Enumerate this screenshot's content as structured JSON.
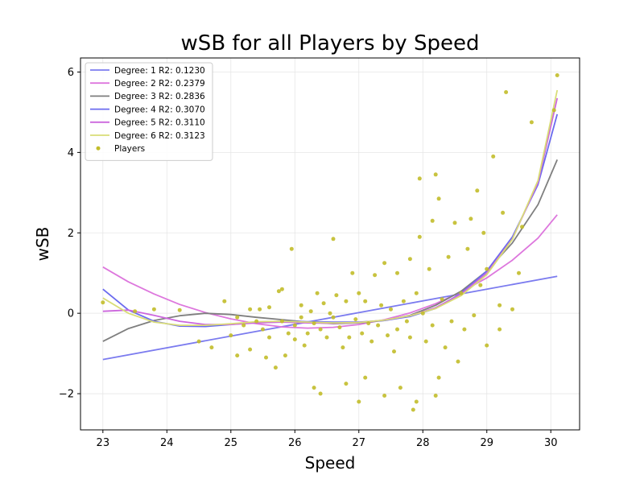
{
  "chart_data": {
    "type": "scatter",
    "title": "wSB for all Players by Speed",
    "xlabel": "Speed",
    "ylabel": "wSB",
    "xlim": [
      22.65,
      30.45
    ],
    "ylim": [
      -2.9,
      6.35
    ],
    "xticks": [
      23,
      24,
      25,
      26,
      27,
      28,
      29,
      30
    ],
    "yticks": [
      -2,
      0,
      2,
      4,
      6
    ],
    "ytick_labels": [
      "−2",
      "0",
      "2",
      "4",
      "6"
    ],
    "grid": true,
    "legend_position": "top-left",
    "series": [
      {
        "name": "Degree: 1 R2: 0.1230",
        "kind": "line",
        "color": "#7b7bef",
        "x": [
          23.0,
          30.1
        ],
        "y": [
          -1.15,
          0.92
        ]
      },
      {
        "name": "Degree: 2 R2: 0.2379",
        "kind": "line",
        "color": "#dd77dd",
        "x": [
          23.0,
          23.4,
          23.8,
          24.2,
          24.6,
          25.0,
          25.4,
          25.8,
          26.2,
          26.6,
          27.0,
          27.4,
          27.8,
          28.2,
          28.6,
          29.0,
          29.4,
          29.8,
          30.1
        ],
        "y": [
          1.15,
          0.78,
          0.48,
          0.22,
          0.02,
          -0.14,
          -0.26,
          -0.34,
          -0.37,
          -0.35,
          -0.28,
          -0.16,
          0.01,
          0.24,
          0.53,
          0.88,
          1.32,
          1.87,
          2.45
        ]
      },
      {
        "name": "Degree: 3 R2: 0.2836",
        "kind": "line",
        "color": "#7f7f7f",
        "x": [
          23.0,
          23.4,
          23.8,
          24.2,
          24.6,
          25.0,
          25.4,
          25.8,
          26.2,
          26.6,
          27.0,
          27.4,
          27.8,
          28.2,
          28.6,
          29.0,
          29.4,
          29.8,
          30.1
        ],
        "y": [
          -0.7,
          -0.38,
          -0.18,
          -0.06,
          0.0,
          -0.03,
          -0.1,
          -0.16,
          -0.22,
          -0.26,
          -0.24,
          -0.18,
          -0.05,
          0.2,
          0.55,
          1.05,
          1.75,
          2.7,
          3.82
        ]
      },
      {
        "name": "Degree: 4 R2: 0.3070",
        "kind": "line",
        "color": "#6b6bef",
        "x": [
          23.0,
          23.4,
          23.8,
          24.2,
          24.6,
          25.0,
          25.4,
          25.8,
          26.2,
          26.6,
          27.0,
          27.4,
          27.8,
          28.2,
          28.6,
          29.0,
          29.4,
          29.8,
          30.1
        ],
        "y": [
          0.6,
          0.08,
          -0.2,
          -0.32,
          -0.33,
          -0.28,
          -0.22,
          -0.2,
          -0.21,
          -0.22,
          -0.22,
          -0.18,
          -0.08,
          0.12,
          0.5,
          1.05,
          1.9,
          3.2,
          4.95
        ]
      },
      {
        "name": "Degree: 5 R2: 0.3110",
        "kind": "line",
        "color": "#cc66dd",
        "x": [
          23.0,
          23.4,
          23.8,
          24.2,
          24.6,
          25.0,
          25.4,
          25.8,
          26.2,
          26.6,
          27.0,
          27.4,
          27.8,
          28.2,
          28.6,
          29.0,
          29.4,
          29.8,
          30.1
        ],
        "y": [
          0.05,
          0.08,
          -0.05,
          -0.2,
          -0.28,
          -0.28,
          -0.24,
          -0.22,
          -0.24,
          -0.25,
          -0.23,
          -0.17,
          -0.06,
          0.14,
          0.48,
          1.0,
          1.85,
          3.25,
          5.35
        ]
      },
      {
        "name": "Degree: 6 R2: 0.3123",
        "kind": "line",
        "color": "#d9dd77",
        "x": [
          23.0,
          23.4,
          23.8,
          24.2,
          24.6,
          25.0,
          25.4,
          25.8,
          26.2,
          26.6,
          27.0,
          27.4,
          27.8,
          28.2,
          28.6,
          29.0,
          29.4,
          29.8,
          30.1
        ],
        "y": [
          0.38,
          0.0,
          -0.22,
          -0.3,
          -0.3,
          -0.26,
          -0.21,
          -0.2,
          -0.22,
          -0.24,
          -0.23,
          -0.17,
          -0.06,
          0.12,
          0.44,
          0.96,
          1.84,
          3.3,
          5.55
        ]
      },
      {
        "name": "Players",
        "kind": "scatter",
        "color": "#c2bd2a",
        "points": [
          [
            23.0,
            0.27
          ],
          [
            23.5,
            0.05
          ],
          [
            23.8,
            0.1
          ],
          [
            24.2,
            0.08
          ],
          [
            24.5,
            -0.7
          ],
          [
            24.7,
            -0.85
          ],
          [
            24.9,
            0.3
          ],
          [
            25.0,
            -0.55
          ],
          [
            25.1,
            -0.1
          ],
          [
            25.1,
            -1.05
          ],
          [
            25.2,
            -0.3
          ],
          [
            25.3,
            0.1
          ],
          [
            25.3,
            -0.9
          ],
          [
            25.4,
            -0.2
          ],
          [
            25.45,
            0.1
          ],
          [
            25.5,
            -0.4
          ],
          [
            25.55,
            -1.1
          ],
          [
            25.6,
            -0.6
          ],
          [
            25.6,
            0.15
          ],
          [
            25.7,
            -1.35
          ],
          [
            25.75,
            0.55
          ],
          [
            25.8,
            -0.2
          ],
          [
            25.8,
            0.6
          ],
          [
            25.85,
            -1.05
          ],
          [
            25.9,
            -0.5
          ],
          [
            25.95,
            1.6
          ],
          [
            26.0,
            -0.3
          ],
          [
            26.0,
            -0.65
          ],
          [
            26.1,
            0.2
          ],
          [
            26.1,
            -0.1
          ],
          [
            26.15,
            -0.8
          ],
          [
            26.2,
            -0.5
          ],
          [
            26.25,
            0.05
          ],
          [
            26.3,
            -0.25
          ],
          [
            26.3,
            -1.85
          ],
          [
            26.35,
            0.5
          ],
          [
            26.4,
            -0.4
          ],
          [
            26.4,
            -2.0
          ],
          [
            26.45,
            0.25
          ],
          [
            26.5,
            -0.6
          ],
          [
            26.55,
            0.0
          ],
          [
            26.6,
            -0.1
          ],
          [
            26.6,
            1.85
          ],
          [
            26.65,
            0.45
          ],
          [
            26.7,
            -0.35
          ],
          [
            26.75,
            -0.85
          ],
          [
            26.8,
            -1.75
          ],
          [
            26.8,
            0.3
          ],
          [
            26.85,
            -0.6
          ],
          [
            26.9,
            1.0
          ],
          [
            26.95,
            -0.15
          ],
          [
            27.0,
            0.5
          ],
          [
            27.0,
            -2.2
          ],
          [
            27.05,
            -0.5
          ],
          [
            27.1,
            0.3
          ],
          [
            27.1,
            -1.6
          ],
          [
            27.15,
            -0.25
          ],
          [
            27.2,
            -0.7
          ],
          [
            27.25,
            0.95
          ],
          [
            27.3,
            -0.3
          ],
          [
            27.35,
            0.2
          ],
          [
            27.4,
            -2.05
          ],
          [
            27.4,
            1.25
          ],
          [
            27.45,
            -0.55
          ],
          [
            27.5,
            0.1
          ],
          [
            27.55,
            -0.95
          ],
          [
            27.6,
            -0.4
          ],
          [
            27.6,
            1.0
          ],
          [
            27.65,
            -1.85
          ],
          [
            27.7,
            0.3
          ],
          [
            27.75,
            -0.2
          ],
          [
            27.8,
            -0.6
          ],
          [
            27.8,
            1.35
          ],
          [
            27.85,
            -2.4
          ],
          [
            27.9,
            0.5
          ],
          [
            27.9,
            -2.2
          ],
          [
            27.95,
            3.35
          ],
          [
            27.95,
            1.9
          ],
          [
            28.0,
            0.0
          ],
          [
            28.05,
            -0.7
          ],
          [
            28.1,
            1.1
          ],
          [
            28.15,
            2.3
          ],
          [
            28.15,
            -0.3
          ],
          [
            28.2,
            -2.05
          ],
          [
            28.2,
            3.45
          ],
          [
            28.25,
            2.85
          ],
          [
            28.25,
            -1.6
          ],
          [
            28.3,
            0.35
          ],
          [
            28.35,
            -0.85
          ],
          [
            28.4,
            1.4
          ],
          [
            28.45,
            -0.2
          ],
          [
            28.5,
            2.25
          ],
          [
            28.55,
            -1.2
          ],
          [
            28.6,
            0.5
          ],
          [
            28.65,
            -0.4
          ],
          [
            28.7,
            1.6
          ],
          [
            28.75,
            2.35
          ],
          [
            28.8,
            -0.05
          ],
          [
            28.85,
            3.05
          ],
          [
            28.9,
            0.7
          ],
          [
            28.95,
            2.0
          ],
          [
            29.0,
            -0.8
          ],
          [
            29.0,
            1.1
          ],
          [
            29.1,
            3.9
          ],
          [
            29.2,
            0.2
          ],
          [
            29.2,
            -0.4
          ],
          [
            29.25,
            2.5
          ],
          [
            29.3,
            5.5
          ],
          [
            29.4,
            0.1
          ],
          [
            29.5,
            1.0
          ],
          [
            29.55,
            2.15
          ],
          [
            29.7,
            4.75
          ],
          [
            30.05,
            5.05
          ],
          [
            30.1,
            5.92
          ]
        ]
      }
    ]
  }
}
